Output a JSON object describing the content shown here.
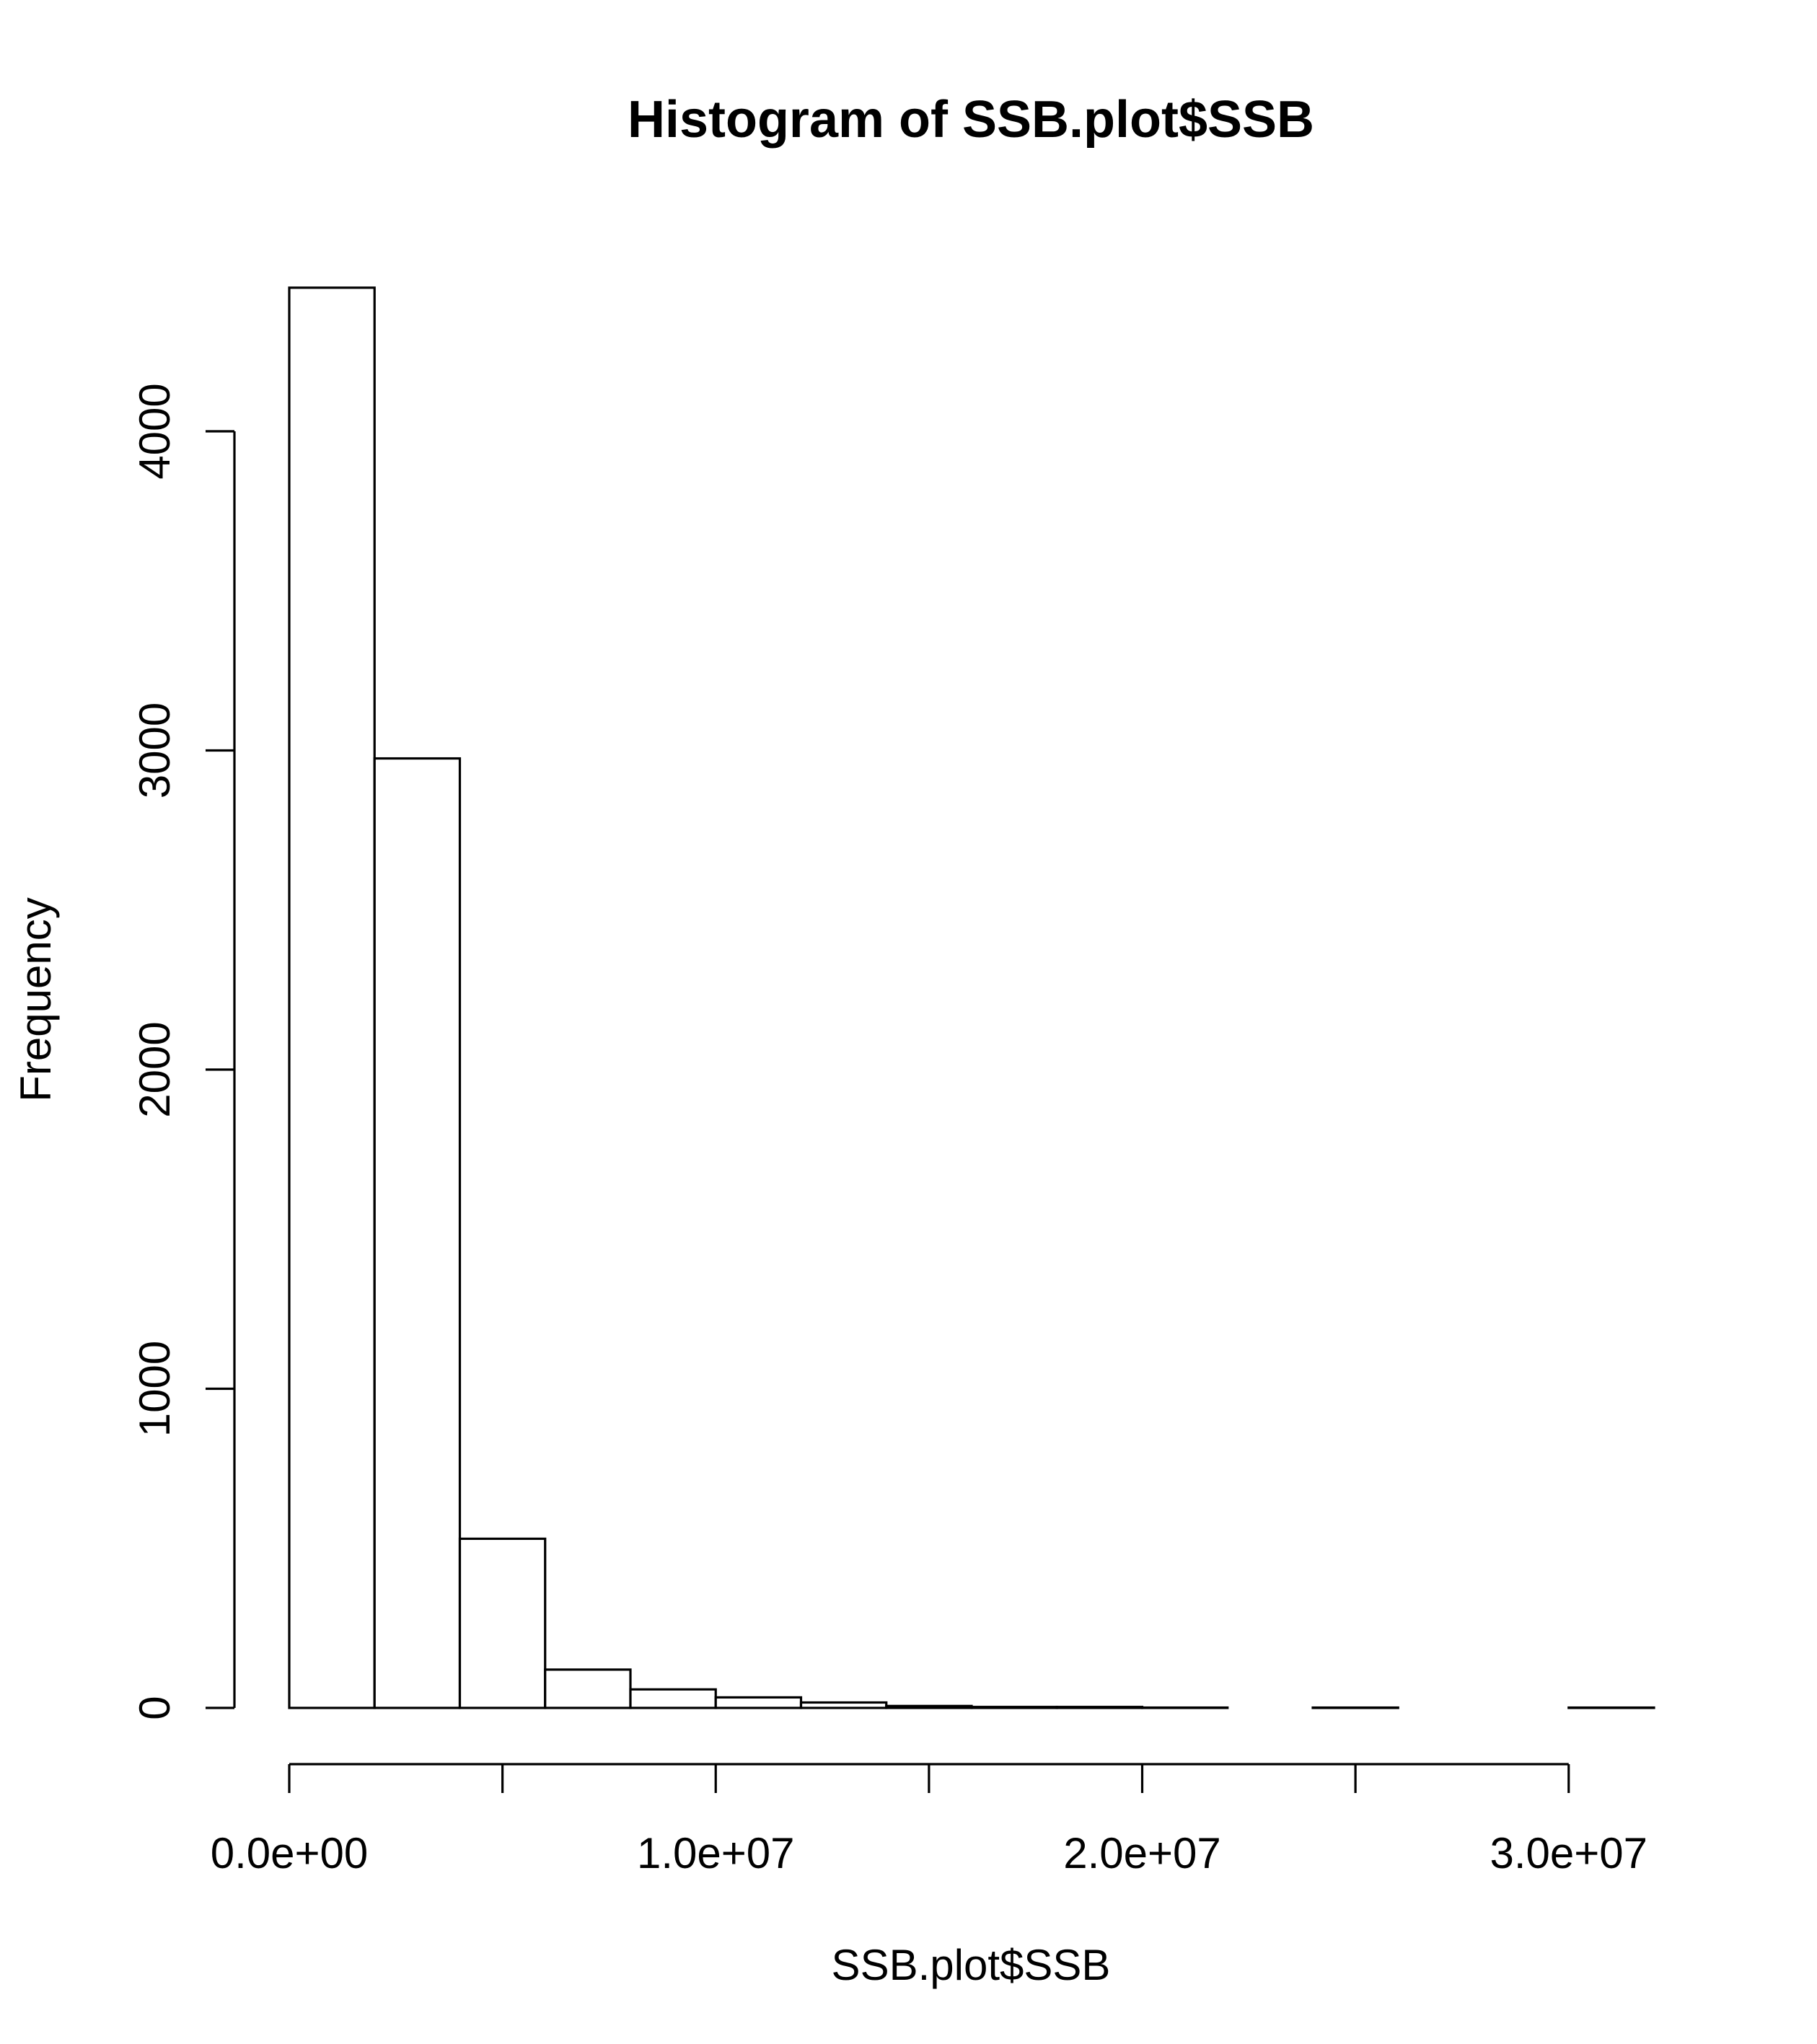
{
  "chart_data": {
    "type": "bar",
    "title": "Histogram of SSB.plot$SSB",
    "xlabel": "SSB.plot$SSB",
    "ylabel": "Frequency",
    "bin_width": 2000000,
    "bins": [
      {
        "x0": 0,
        "x1": 2000000,
        "count": 4450
      },
      {
        "x0": 2000000,
        "x1": 4000000,
        "count": 2975
      },
      {
        "x0": 4000000,
        "x1": 6000000,
        "count": 530
      },
      {
        "x0": 6000000,
        "x1": 8000000,
        "count": 120
      },
      {
        "x0": 8000000,
        "x1": 10000000,
        "count": 58
      },
      {
        "x0": 10000000,
        "x1": 12000000,
        "count": 33
      },
      {
        "x0": 12000000,
        "x1": 14000000,
        "count": 17
      },
      {
        "x0": 14000000,
        "x1": 16000000,
        "count": 6
      },
      {
        "x0": 16000000,
        "x1": 18000000,
        "count": 3
      },
      {
        "x0": 18000000,
        "x1": 20000000,
        "count": 3
      },
      {
        "x0": 20000000,
        "x1": 22000000,
        "count": 1
      },
      {
        "x0": 22000000,
        "x1": 24000000,
        "count": 0
      },
      {
        "x0": 24000000,
        "x1": 26000000,
        "count": 1
      },
      {
        "x0": 26000000,
        "x1": 28000000,
        "count": 0
      },
      {
        "x0": 28000000,
        "x1": 30000000,
        "count": 0
      },
      {
        "x0": 30000000,
        "x1": 32000000,
        "count": 1
      }
    ],
    "xlim": [
      0,
      32000000
    ],
    "ylim": [
      0,
      4450
    ],
    "x_axis": {
      "range": [
        0,
        30000000
      ],
      "ticks": [
        0,
        5000000,
        10000000,
        15000000,
        20000000,
        25000000,
        30000000
      ],
      "tick_labels": [
        {
          "value": 0,
          "label": "0.0e+00"
        },
        {
          "value": 10000000,
          "label": "1.0e+07"
        },
        {
          "value": 20000000,
          "label": "2.0e+07"
        },
        {
          "value": 30000000,
          "label": "3.0e+07"
        }
      ]
    },
    "y_axis": {
      "range": [
        0,
        4000
      ],
      "ticks": [
        0,
        1000,
        2000,
        3000,
        4000
      ],
      "tick_labels": [
        {
          "value": 0,
          "label": "0"
        },
        {
          "value": 1000,
          "label": "1000"
        },
        {
          "value": 2000,
          "label": "2000"
        },
        {
          "value": 3000,
          "label": "3000"
        },
        {
          "value": 4000,
          "label": "4000"
        }
      ]
    },
    "grid": false,
    "legend": "none"
  }
}
